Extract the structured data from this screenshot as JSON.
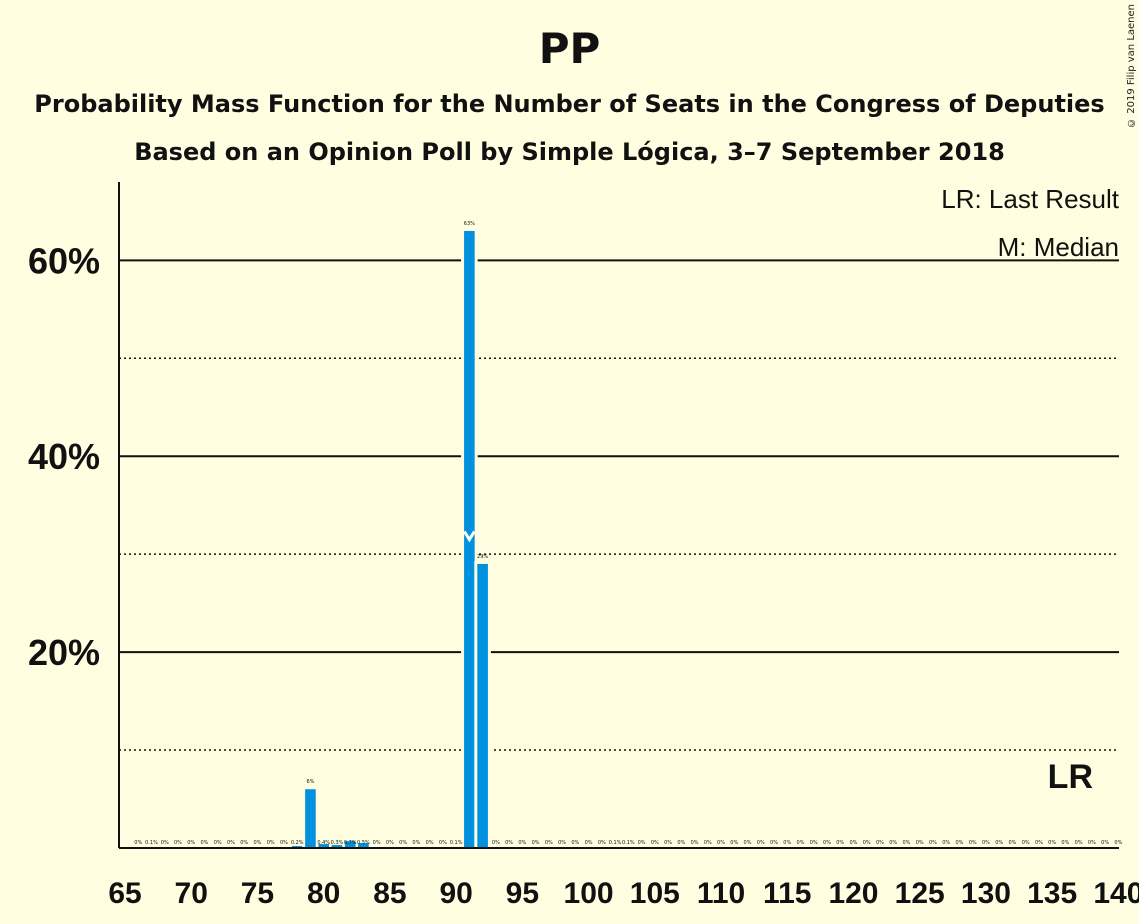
{
  "chart_data": {
    "type": "bar",
    "title": "PP",
    "subtitle_lines": [
      "Probability Mass Function for the Number of Seats in the Congress of Deputies",
      "Based on an Opinion Poll by Simple Lógica, 3–7 September 2018"
    ],
    "copyright": "© 2019 Filip van Laenen",
    "legend": [
      "LR: Last Result",
      "M: Median"
    ],
    "last_result_label": "LR",
    "last_result_seat": 137,
    "median_seat": 91,
    "median_marker": "M",
    "xlim": [
      65,
      140
    ],
    "ylim": [
      0,
      68
    ],
    "x_ticks": [
      65,
      70,
      75,
      80,
      85,
      90,
      95,
      100,
      105,
      110,
      115,
      120,
      125,
      130,
      135,
      140
    ],
    "y_ticks_major": [
      20,
      40,
      60
    ],
    "y_tick_labels": [
      "20%",
      "40%",
      "60%"
    ],
    "y_ticks_minor": [
      10,
      30,
      50
    ],
    "bar_color": "#0091DF",
    "seats": [
      66,
      67,
      68,
      69,
      70,
      71,
      72,
      73,
      74,
      75,
      76,
      77,
      78,
      79,
      80,
      81,
      82,
      83,
      84,
      85,
      86,
      87,
      88,
      89,
      90,
      91,
      92,
      93,
      94,
      95,
      96,
      97,
      98,
      99,
      100,
      101,
      102,
      103,
      104,
      105,
      106,
      107,
      108,
      109,
      110,
      111,
      112,
      113,
      114,
      115,
      116,
      117,
      118,
      119,
      120,
      121,
      122,
      123,
      124,
      125,
      126,
      127,
      128,
      129,
      130,
      131,
      132,
      133,
      134,
      135,
      136,
      137,
      138,
      139,
      140
    ],
    "values": [
      0,
      0.1,
      0,
      0,
      0,
      0,
      0,
      0,
      0,
      0,
      0,
      0,
      0.2,
      6,
      0.4,
      0.3,
      0.7,
      0.5,
      0,
      0,
      0,
      0,
      0,
      0,
      0.1,
      63,
      29,
      0,
      0,
      0,
      0,
      0,
      0,
      0,
      0,
      0,
      0.1,
      0.1,
      0,
      0,
      0,
      0,
      0,
      0,
      0,
      0,
      0,
      0,
      0,
      0,
      0,
      0,
      0,
      0,
      0,
      0,
      0,
      0,
      0,
      0,
      0,
      0,
      0,
      0,
      0,
      0,
      0,
      0,
      0,
      0,
      0,
      0,
      0,
      0,
      0
    ],
    "labels": [
      "0%",
      "0.1%",
      "0%",
      "0%",
      "0%",
      "0%",
      "0%",
      "0%",
      "0%",
      "0%",
      "0%",
      "0%",
      "0.2%",
      "6%",
      "0.4%",
      "0.3%",
      "0.7%",
      "0.5%",
      "0%",
      "0%",
      "0%",
      "0%",
      "0%",
      "0%",
      "0.1%",
      "63%",
      "29%",
      "0%",
      "0%",
      "0%",
      "0%",
      "0%",
      "0%",
      "0%",
      "0%",
      "0%",
      "0.1%",
      "0.1%",
      "0%",
      "0%",
      "0%",
      "0%",
      "0%",
      "0%",
      "0%",
      "0%",
      "0%",
      "0%",
      "0%",
      "0%",
      "0%",
      "0%",
      "0%",
      "0%",
      "0%",
      "0%",
      "0%",
      "0%",
      "0%",
      "0%",
      "0%",
      "0%",
      "0%",
      "0%",
      "0%",
      "0%",
      "0%",
      "0%",
      "0%",
      "0%",
      "0%",
      "0%",
      "0%",
      "0%",
      "0%"
    ]
  }
}
